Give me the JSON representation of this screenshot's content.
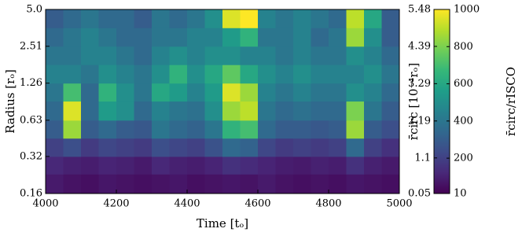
{
  "chart_data": {
    "type": "heatmap",
    "x_label": "Time [tₒ]",
    "y_label": "Radius [rₒ]",
    "colorbar_label": "r̄circ/rISCO",
    "colorbar2_label": "r̄circ [10⁻⁴rₒ]",
    "colormap": "viridis",
    "x_bins": [
      4000,
      4050,
      4100,
      4150,
      4200,
      4250,
      4300,
      4350,
      4400,
      4450,
      4500,
      4550,
      4600,
      4650,
      4700,
      4750,
      4800,
      4850,
      4900,
      4950,
      5000
    ],
    "y_bins": [
      0.16,
      0.23,
      0.32,
      0.45,
      0.63,
      0.9,
      1.26,
      1.78,
      2.51,
      3.55,
      5.0
    ],
    "y_log": true,
    "xlim": [
      4000,
      5000
    ],
    "xticks": [
      4000,
      4200,
      4400,
      4600,
      4800,
      5000
    ],
    "ylim": [
      0.16,
      5.0
    ],
    "yticks": [
      0.16,
      0.32,
      0.63,
      1.26,
      2.51,
      {
        "value": 5.0,
        "label": "5.0"
      }
    ],
    "clim": [
      10,
      1000
    ],
    "cticks": [
      10,
      200,
      400,
      600,
      800,
      1000
    ],
    "c2lim": [
      0.05,
      5.48
    ],
    "c2ticks": [
      0.05,
      1.1,
      2.19,
      3.29,
      4.39,
      5.48
    ],
    "values": [
      [
        80,
        60,
        50,
        70,
        60,
        50,
        60,
        70,
        50,
        60,
        70,
        60,
        80,
        60,
        50,
        60,
        50,
        70,
        60,
        50
      ],
      [
        120,
        100,
        90,
        110,
        100,
        80,
        120,
        100,
        90,
        110,
        150,
        130,
        110,
        90,
        80,
        100,
        90,
        150,
        100,
        80
      ],
      [
        200,
        250,
        180,
        220,
        200,
        180,
        250,
        220,
        200,
        260,
        350,
        320,
        220,
        180,
        200,
        180,
        200,
        350,
        200,
        150
      ],
      [
        300,
        850,
        300,
        350,
        300,
        280,
        400,
        350,
        320,
        400,
        650,
        700,
        350,
        300,
        300,
        280,
        300,
        850,
        300,
        250
      ],
      [
        350,
        950,
        350,
        550,
        500,
        350,
        450,
        400,
        380,
        500,
        850,
        900,
        400,
        350,
        380,
        350,
        350,
        800,
        400,
        300
      ],
      [
        400,
        700,
        350,
        650,
        500,
        400,
        600,
        550,
        450,
        550,
        950,
        850,
        450,
        400,
        450,
        400,
        400,
        500,
        450,
        350
      ],
      [
        450,
        450,
        400,
        500,
        450,
        400,
        500,
        650,
        500,
        600,
        750,
        600,
        500,
        450,
        500,
        450,
        450,
        450,
        500,
        400
      ],
      [
        400,
        400,
        450,
        450,
        400,
        350,
        450,
        500,
        450,
        500,
        500,
        450,
        450,
        400,
        450,
        400,
        400,
        500,
        450,
        350
      ],
      [
        350,
        400,
        450,
        400,
        350,
        350,
        400,
        400,
        450,
        450,
        550,
        650,
        400,
        400,
        450,
        350,
        400,
        850,
        500,
        300
      ],
      [
        300,
        350,
        400,
        350,
        350,
        300,
        400,
        350,
        400,
        500,
        950,
        1000,
        450,
        400,
        450,
        400,
        350,
        900,
        600,
        300
      ]
    ]
  }
}
